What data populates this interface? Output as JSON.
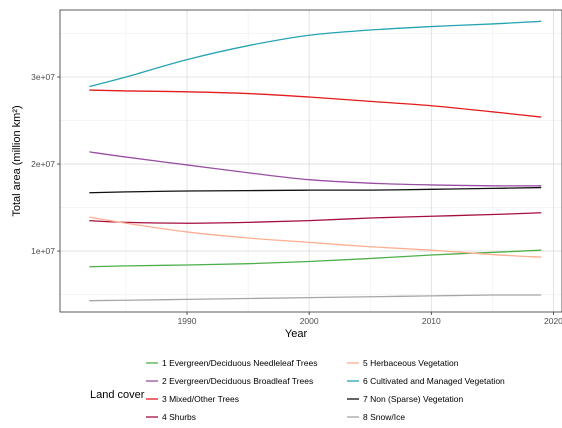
{
  "chart_data": {
    "type": "line",
    "xlabel": "Year",
    "ylabel": "Total area (million km²)",
    "xlim": [
      1979.6,
      2020.7
    ],
    "ylim": [
      3000000,
      37700000
    ],
    "x_ticks": [
      1990,
      2000,
      2010,
      2020
    ],
    "x_tick_labels": [
      "1990",
      "2000",
      "2010",
      "2020"
    ],
    "y_ticks": [
      10000000,
      20000000,
      30000000
    ],
    "y_tick_labels": [
      "1e+07",
      "2e+07",
      "3e+07"
    ],
    "grid": true,
    "legend_title": "Land cover",
    "legend_position": "bottom",
    "x": [
      1982,
      1985,
      1990,
      1995,
      2000,
      2005,
      2010,
      2015,
      2019
    ],
    "series": [
      {
        "name": "1 Evergreen/Deciduous Needleleaf Trees",
        "color": "#4daf4a",
        "values": [
          8200000,
          8300000,
          8400000,
          8550000,
          8800000,
          9150000,
          9550000,
          9850000,
          10100000
        ]
      },
      {
        "name": "2 Evergreen/Deciduous Broadleaf Trees",
        "color": "#984ea3",
        "values": [
          21400000,
          20800000,
          19900000,
          19000000,
          18200000,
          17800000,
          17600000,
          17500000,
          17500000
        ]
      },
      {
        "name": "3 Mixed/Other Trees",
        "color": "#e41a1c",
        "values": [
          28500000,
          28400000,
          28300000,
          28100000,
          27700000,
          27200000,
          26700000,
          26000000,
          25400000
        ]
      },
      {
        "name": "4 Shurbs",
        "color": "#a50f3c",
        "values": [
          13500000,
          13300000,
          13200000,
          13300000,
          13500000,
          13800000,
          14000000,
          14200000,
          14400000
        ]
      },
      {
        "name": "5 Herbaceous Vegetation",
        "color": "#fdae91",
        "values": [
          13900000,
          13200000,
          12200000,
          11500000,
          11000000,
          10500000,
          10100000,
          9600000,
          9300000
        ]
      },
      {
        "name": "6 Cultivated and Managed Vegetation",
        "color": "#26a4b3",
        "values": [
          28900000,
          30000000,
          32000000,
          33600000,
          34800000,
          35400000,
          35800000,
          36100000,
          36400000
        ]
      },
      {
        "name": "7 Non (Sparse) Vegetation",
        "color": "#111111",
        "values": [
          16700000,
          16800000,
          16900000,
          16950000,
          17000000,
          17000000,
          17100000,
          17200000,
          17300000
        ]
      },
      {
        "name": "8 Snow/Ice",
        "color": "#a6a6a6",
        "values": [
          4300000,
          4350000,
          4450000,
          4550000,
          4650000,
          4750000,
          4850000,
          4950000,
          4950000
        ]
      }
    ]
  }
}
